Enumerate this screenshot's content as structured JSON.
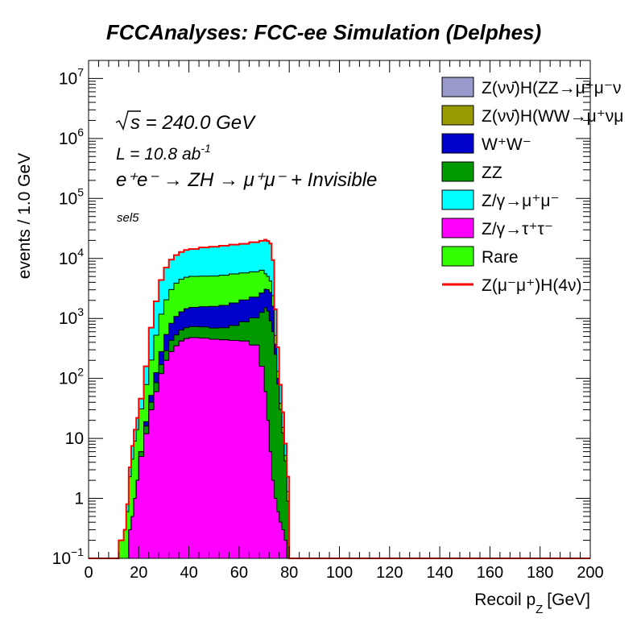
{
  "chart_data": {
    "type": "area",
    "title": "FCCAnalyses: FCC-ee Simulation (Delphes)",
    "xlabel_main": "Recoil p",
    "xlabel_sub": "Z",
    "xlabel_unit": "[GeV]",
    "ylabel": "events / 1.0 GeV",
    "xlim": [
      0,
      200
    ],
    "ylim": [
      0.1,
      20000000
    ],
    "yscale": "log",
    "x_ticks": [
      "0",
      "20",
      "40",
      "60",
      "80",
      "100",
      "120",
      "140",
      "160",
      "180",
      "200"
    ],
    "y_ticks": [
      {
        "value": 0.1,
        "base": "10",
        "exp": "−1"
      },
      {
        "value": 1,
        "base": "1",
        "exp": ""
      },
      {
        "value": 10,
        "base": "10",
        "exp": ""
      },
      {
        "value": 100,
        "base": "10",
        "exp": "2"
      },
      {
        "value": 1000,
        "base": "10",
        "exp": "3"
      },
      {
        "value": 10000,
        "base": "10",
        "exp": "4"
      },
      {
        "value": 100000,
        "base": "10",
        "exp": "5"
      },
      {
        "value": 1000000,
        "base": "10",
        "exp": "6"
      },
      {
        "value": 10000000,
        "base": "10",
        "exp": "7"
      }
    ],
    "annotations": {
      "sqrt_s": "s = 240.0 GeV",
      "lumi_main": "L = 10.8 ab",
      "lumi_exp": "-1",
      "process": "e⁺e⁻ → ZH → μ⁺μ⁻ + Invisible",
      "selection": "sel5"
    },
    "legend_placement": "top-right",
    "legend": [
      {
        "label": "Z(νν̄)H(ZZ→μ⁺μ⁻ν",
        "color": "#9999cc",
        "kind": "fill"
      },
      {
        "label": "Z(νν̄)H(WW→μ⁺νμ",
        "color": "#999900",
        "kind": "fill"
      },
      {
        "label": "W⁺W⁻",
        "color": "#0000cc",
        "kind": "fill"
      },
      {
        "label": "ZZ",
        "color": "#009900",
        "kind": "fill"
      },
      {
        "label": "Z/γ→μ⁺μ⁻",
        "color": "#00ffff",
        "kind": "fill"
      },
      {
        "label": "Z/γ→τ⁺τ⁻",
        "color": "#ff00ff",
        "kind": "fill"
      },
      {
        "label": "Rare",
        "color": "#33ff00",
        "kind": "fill"
      },
      {
        "label": "Z(μ⁻μ⁺)H(4ν)",
        "color": "#ff0000",
        "kind": "line"
      }
    ],
    "stack_x": [
      12,
      13,
      14,
      15,
      16,
      17,
      18,
      19,
      20,
      22,
      24,
      26,
      28,
      30,
      32,
      34,
      36,
      38,
      40,
      44,
      48,
      52,
      56,
      60,
      64,
      68,
      70,
      71,
      72,
      73,
      74,
      75,
      76,
      77,
      78,
      79
    ],
    "series": [
      {
        "name": "Z/γ→τ⁺τ⁻",
        "color": "#ff00ff",
        "values": [
          0.1,
          0.1,
          0.1,
          0.1,
          0.3,
          0.5,
          1,
          2,
          5,
          12,
          30,
          60,
          120,
          200,
          280,
          350,
          420,
          460,
          480,
          470,
          450,
          440,
          430,
          420,
          360,
          160,
          60,
          20,
          6,
          2,
          1,
          0.6,
          0.4,
          0.3,
          0.2,
          0.1
        ]
      },
      {
        "name": "Z(νν̄)H(ZZ→μ⁺μ⁻ν",
        "color": "#9999cc",
        "values": [
          0,
          0,
          0,
          0,
          0,
          0,
          0,
          0,
          0,
          0,
          0,
          0,
          0,
          0.13,
          0.25,
          0.4,
          0.55,
          0.68,
          0.73,
          0.72,
          0.65,
          0.52,
          0.38,
          0.22,
          0.12,
          0,
          0,
          0,
          0,
          0,
          0,
          0,
          0,
          0,
          0,
          0
        ]
      },
      {
        "name": "Z(νν̄)H(WW→μ⁺νμ",
        "color": "#999900",
        "values": [
          0,
          0,
          0,
          0,
          0,
          0,
          0,
          0,
          0,
          0,
          0,
          0,
          0,
          0,
          0,
          0,
          0,
          0,
          0,
          0,
          0,
          0,
          0,
          0,
          0,
          0,
          0,
          0,
          0,
          0,
          0,
          0,
          0,
          0,
          0,
          0
        ]
      },
      {
        "name": "ZZ",
        "color": "#009900",
        "values": [
          0,
          0,
          0,
          0,
          0,
          0,
          0,
          0,
          1,
          4,
          10,
          25,
          50,
          90,
          150,
          180,
          220,
          240,
          250,
          250,
          240,
          260,
          330,
          460,
          660,
          1100,
          1450,
          1300,
          900,
          600,
          250,
          80,
          30,
          12,
          4,
          0.8
        ]
      },
      {
        "name": "W⁺W⁻",
        "color": "#0000cc",
        "values": [
          0,
          0,
          0,
          0,
          0,
          0,
          0,
          0,
          0,
          3,
          12,
          40,
          110,
          250,
          400,
          550,
          650,
          750,
          800,
          850,
          900,
          950,
          1050,
          1150,
          1250,
          1400,
          1550,
          1700,
          1800,
          1000,
          120,
          20,
          0,
          0,
          0,
          0
        ]
      },
      {
        "name": "Rare",
        "color": "#33ff00",
        "values": [
          0.1,
          0.1,
          0.2,
          0.5,
          2,
          4,
          8,
          12,
          25,
          60,
          150,
          400,
          900,
          1500,
          2200,
          2800,
          3200,
          3400,
          3500,
          3500,
          3500,
          3600,
          3700,
          3700,
          3700,
          3700,
          2500,
          2000,
          1500,
          800,
          150,
          30,
          8,
          3,
          1,
          0.4
        ]
      },
      {
        "name": "Z/γ→μ⁺μ⁻",
        "color": "#00ffff",
        "values": [
          0,
          0,
          0,
          0.2,
          1,
          3,
          5,
          8,
          15,
          80,
          500,
          1400,
          3200,
          5000,
          6500,
          7500,
          8300,
          9000,
          9300,
          10200,
          10600,
          11000,
          11500,
          11800,
          12700,
          13300,
          15000,
          14500,
          13500,
          7000,
          900,
          200,
          40,
          12,
          3,
          1
        ]
      }
    ]
  }
}
